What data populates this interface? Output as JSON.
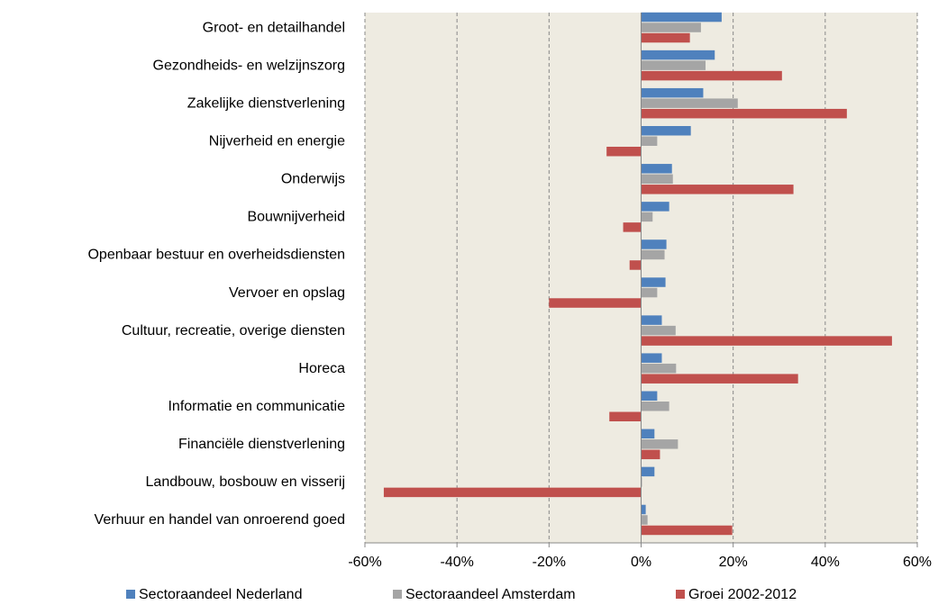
{
  "chart_data": {
    "type": "hbar",
    "categories": [
      "Groot- en detailhandel",
      "Gezondheids- en welzijnszorg",
      "Zakelijke dienstverlening",
      "Nijverheid en energie",
      "Onderwijs",
      "Bouwnijverheid",
      "Openbaar bestuur en overheidsdiensten",
      "Vervoer en opslag",
      "Cultuur, recreatie, overige diensten",
      "Horeca",
      "Informatie en communicatie",
      "Financiële dienstverlening",
      "Landbouw, bosbouw en visserij",
      "Verhuur en handel van onroerend goed"
    ],
    "series": [
      {
        "name": "Sectoraandeel Nederland",
        "color": "#4f81bd",
        "values": [
          17.5,
          16,
          13.5,
          10.8,
          6.7,
          6.1,
          5.5,
          5.3,
          4.5,
          4.5,
          3.5,
          2.9,
          2.9,
          1
        ]
      },
      {
        "name": "Sectoraandeel Amsterdam",
        "color": "#a5a5a5",
        "values": [
          13,
          14,
          21,
          3.5,
          6.9,
          2.5,
          5.1,
          3.5,
          7.5,
          7.6,
          6.1,
          8,
          0.2,
          1.4
        ]
      },
      {
        "name": "Groei 2002-2012",
        "color": "#c0504d",
        "values": [
          10.6,
          30.6,
          44.7,
          -7.5,
          33.1,
          -3.9,
          -2.5,
          -20,
          54.5,
          34.1,
          -6.9,
          4.1,
          -55.9,
          19.8
        ]
      }
    ],
    "xlim": [
      -60,
      60
    ],
    "xticks": [
      {
        "value": -60,
        "label": "-60%"
      },
      {
        "value": -40,
        "label": "-40%"
      },
      {
        "value": -20,
        "label": "-20%"
      },
      {
        "value": 0,
        "label": "0%"
      },
      {
        "value": 20,
        "label": "20%"
      },
      {
        "value": 40,
        "label": "40%"
      },
      {
        "value": 60,
        "label": "60%"
      }
    ],
    "grid": true,
    "legend": "bottom",
    "plot_background": "#eeebe1"
  }
}
